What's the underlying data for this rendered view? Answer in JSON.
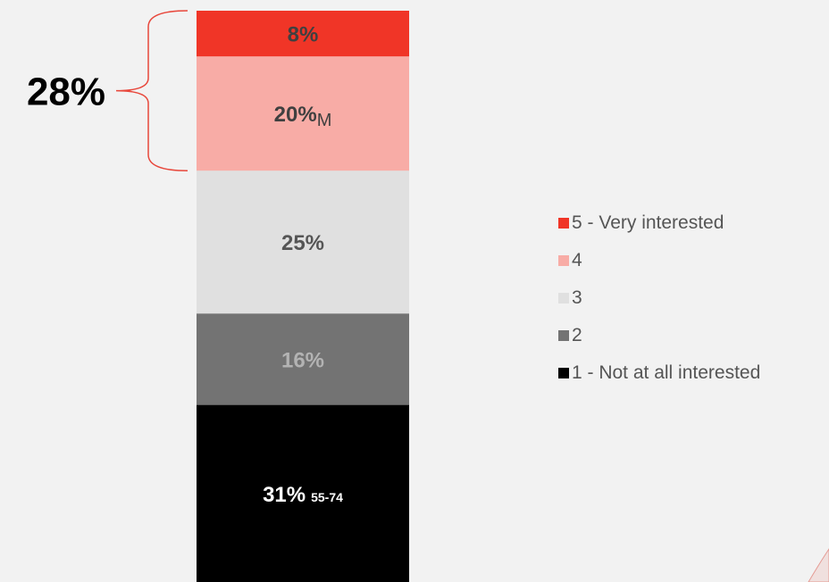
{
  "chart_data": {
    "type": "bar",
    "stacked": true,
    "title": "",
    "xlabel": "",
    "ylabel": "",
    "ylim": [
      0,
      100
    ],
    "categories": [
      ""
    ],
    "series": [
      {
        "name": "1 - Not at all interested",
        "values": [
          31
        ],
        "label": "31%",
        "sublabel": "55-74",
        "color": "#000000",
        "label_color": "#ffffff"
      },
      {
        "name": "2",
        "values": [
          16
        ],
        "label": "16%",
        "sublabel": "",
        "color": "#737373",
        "label_color": "#b3b3b3"
      },
      {
        "name": "3",
        "values": [
          25
        ],
        "label": "25%",
        "sublabel": "",
        "color": "#e0e0e0",
        "label_color": "#555555"
      },
      {
        "name": "4",
        "values": [
          20
        ],
        "label": "20%",
        "sublabel": "M",
        "color": "#f8aca6",
        "label_color": "#404040"
      },
      {
        "name": "5 - Very interested",
        "values": [
          8
        ],
        "label": "8%",
        "sublabel": "",
        "color": "#f03527",
        "label_color": "#404040"
      }
    ],
    "bracket": {
      "label": "28%",
      "spans": [
        "4",
        "5 - Very interested"
      ],
      "color": "#e8473b"
    },
    "legend": {
      "placement": "right",
      "order": [
        "5 - Very interested",
        "4",
        "3",
        "2",
        "1 - Not at all interested"
      ]
    }
  }
}
